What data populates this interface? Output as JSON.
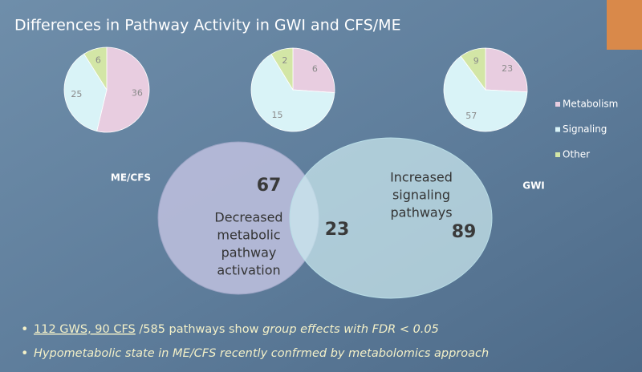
{
  "title": "Differences in Pathway Activity in GWI and CFS/ME",
  "legend": {
    "labels": [
      "Metabolism",
      "Signaling",
      "Other"
    ],
    "colors": [
      "#e8cde0",
      "#d9f3f7",
      "#d3e6a6"
    ]
  },
  "chart_data": [
    {
      "type": "pie",
      "title": "ME/CFS",
      "values": [
        36,
        25,
        6
      ]
    },
    {
      "type": "pie",
      "values": [
        6,
        15,
        2
      ]
    },
    {
      "type": "pie",
      "title": "GWI",
      "values": [
        23,
        57,
        9
      ]
    },
    {
      "type": "venn",
      "sets": [
        {
          "value": 67,
          "lines": [
            "Decreased",
            "metabolic",
            "pathway",
            "activation"
          ]
        },
        {
          "value": 89,
          "lines": [
            "Increased",
            "signaling",
            "pathways"
          ]
        }
      ],
      "overlap": 23
    }
  ],
  "bullets": [
    [
      "112 GWS, 90 CFS",
      " /585 pathways show ",
      "group effects with FDR < 0.05"
    ],
    [
      "Hypometabolic state in ME/CFS recently confrmed by metabolomics approach"
    ]
  ]
}
